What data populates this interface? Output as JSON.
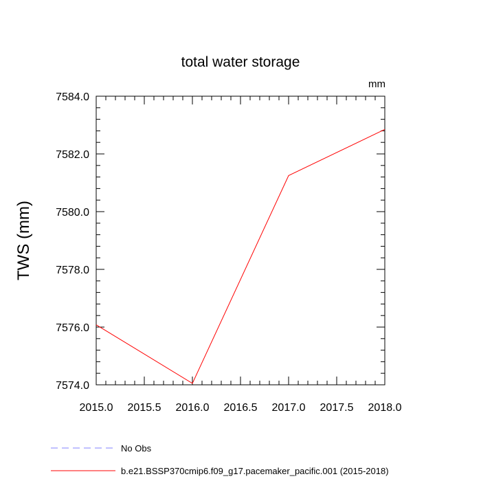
{
  "chart_data": {
    "type": "line",
    "title": "total water storage",
    "units_label": "mm",
    "xlabel": "",
    "ylabel": "TWS  (mm)",
    "xlim": [
      2015.0,
      2018.0
    ],
    "ylim": [
      7574.0,
      7584.0
    ],
    "xticks": [
      "2015.0",
      "2015.5",
      "2016.0",
      "2016.5",
      "2017.0",
      "2017.5",
      "2018.0"
    ],
    "yticks": [
      "7574.0",
      "7576.0",
      "7578.0",
      "7580.0",
      "7582.0",
      "7584.0"
    ],
    "grid": false,
    "legend_position": "bottom",
    "series": [
      {
        "name": "b.e21.BSSP370cmip6.f09_g17.pacemaker_pacific.001 (2015-2018)",
        "color": "#ff0000",
        "dash": "solid",
        "x": [
          2015.0,
          2016.0,
          2017.0,
          2018.0
        ],
        "y": [
          7576.08,
          7574.05,
          7581.25,
          7582.85
        ]
      }
    ],
    "legend": [
      {
        "label": "No Obs",
        "color": "#8080ff",
        "dash": "dashed"
      },
      {
        "label": "b.e21.BSSP370cmip6.f09_g17.pacemaker_pacific.001 (2015-2018)",
        "color": "#ff0000",
        "dash": "solid"
      }
    ]
  }
}
